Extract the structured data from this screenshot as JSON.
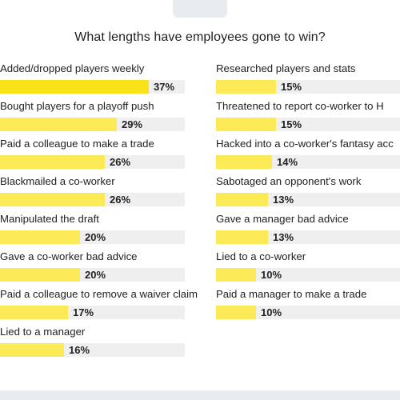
{
  "chart_data": {
    "type": "bar",
    "title": "What lengths have employees gone to win?",
    "unit": "%",
    "xlim": [
      0,
      46
    ],
    "categories": [
      "Added/dropped players weekly",
      "Bought players for a playoff push",
      "Paid a colleague to make a trade",
      "Blackmailed a co-worker",
      "Manipulated the draft",
      "Gave a co-worker bad advice",
      "Paid a colleague to remove a waiver claim",
      "Lied to a manager",
      "Researched players and stats",
      "Threatened to report co-worker to H",
      "Hacked into a co-worker's fantasy acc",
      "Sabotaged an opponent's work",
      "Gave a manager bad advice",
      "Lied to a co-worker",
      "Paid a manager to make a trade"
    ],
    "values": [
      37,
      29,
      26,
      26,
      20,
      20,
      17,
      16,
      15,
      15,
      14,
      13,
      13,
      10,
      10
    ],
    "value_labels": [
      "37%",
      "29%",
      "26%",
      "26%",
      "20%",
      "20%",
      "17%",
      "16%",
      "15%",
      "15%",
      "14%",
      "13%",
      "13%",
      "10%",
      "10%"
    ],
    "columns": [
      {
        "items": [
          0,
          1,
          2,
          3,
          4,
          5,
          6,
          7
        ]
      },
      {
        "items": [
          8,
          9,
          10,
          11,
          12,
          13,
          14
        ]
      }
    ],
    "colors": {
      "bar": "#fbe956",
      "bar_highlight": "#f9e218",
      "track": "#efefef"
    }
  }
}
